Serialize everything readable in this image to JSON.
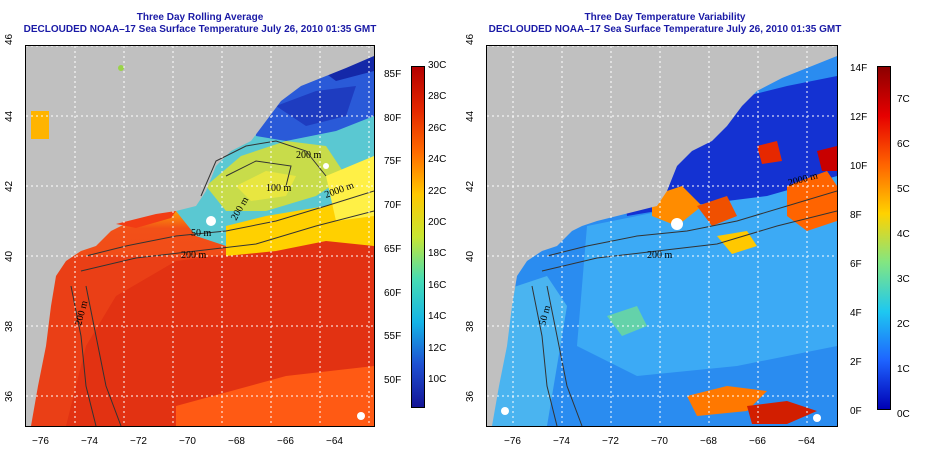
{
  "left_panel": {
    "title": "Three Day Rolling Average",
    "subtitle": "DECLOUDED NOAA–17 Sea Surface Temperature July 26, 2010 01:35 GMT",
    "contour_labels": [
      "200 m",
      "200 m",
      "100 m",
      "200 m",
      "2000 m",
      "200 m",
      "50 m"
    ],
    "colorbar": {
      "fahrenheit": [
        "85F",
        "80F",
        "75F",
        "70F",
        "65F",
        "60F",
        "55F",
        "50F"
      ],
      "celsius": [
        "30C",
        "28C",
        "26C",
        "24C",
        "22C",
        "20C",
        "18C",
        "16C",
        "14C",
        "12C",
        "10C"
      ],
      "colors": [
        "#b40000",
        "#e32600",
        "#ff6a00",
        "#ffc800",
        "#c8e632",
        "#46dcb4",
        "#14b4e6",
        "#1e50d2",
        "#141496"
      ]
    }
  },
  "right_panel": {
    "title": "Three Day Temperature Variability",
    "subtitle": "DECLOUDED NOAA–17 Sea Surface Temperature July 26, 2010 01:35 GMT",
    "contour_labels": [
      "2000 m",
      "200 m",
      "50 m"
    ],
    "colorbar": {
      "fahrenheit": [
        "14F",
        "12F",
        "10F",
        "8F",
        "6F",
        "4F",
        "2F",
        "0F"
      ],
      "celsius": [
        "7C",
        "6C",
        "5C",
        "4C",
        "3C",
        "2C",
        "1C",
        "0C"
      ],
      "colors": [
        "#8c0000",
        "#e60000",
        "#ff6400",
        "#ffd200",
        "#82e682",
        "#1ec8f0",
        "#1e64ff",
        "#0000b4"
      ]
    }
  },
  "axes": {
    "longitude_ticks": [
      "−76",
      "−74",
      "−72",
      "−70",
      "−68",
      "−66",
      "−64"
    ],
    "latitude_ticks": [
      "46",
      "44",
      "42",
      "40",
      "38",
      "36"
    ]
  },
  "colors": {
    "land": "#c0c0c0",
    "title": "#1a1aa6",
    "grid": "#ffffff",
    "contour": "#333333"
  }
}
